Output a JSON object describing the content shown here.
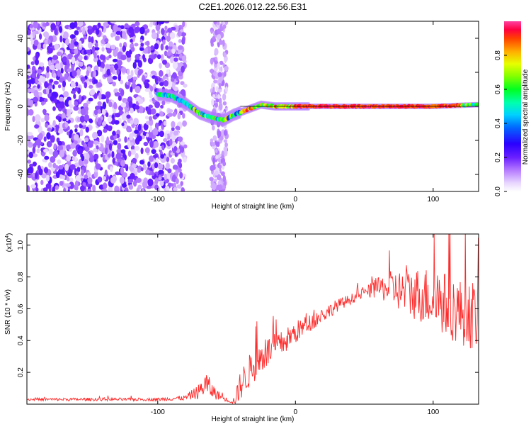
{
  "title": "C2E1.2026.012.22.56.E31",
  "colors": {
    "axis": "#000000",
    "line": "#ff2a2a",
    "spectrum_low": "#cc99ff",
    "spectrum_mid": "#00ff66",
    "spectrum_high": "#ff0000"
  },
  "chart_data": [
    {
      "type": "heatmap",
      "title": "C2E1.2026.012.22.56.E31",
      "xlabel": "Height of straight line (km)",
      "ylabel": "Frequency (Hz)",
      "xlim": [
        -195,
        133
      ],
      "ylim": [
        -50,
        50
      ],
      "xticks": [
        -100,
        0,
        100
      ],
      "yticks": [
        -40,
        -20,
        0,
        20,
        40
      ],
      "colorbar": {
        "label": "Normalized spectral amplitude",
        "range": [
          0,
          1
        ],
        "ticks": [
          "0.0",
          "0.2",
          "0.4",
          "0.6",
          "0.8"
        ]
      },
      "ridge": {
        "x": [
          -98,
          -90,
          -80,
          -70,
          -60,
          -52,
          -45,
          -35,
          -25,
          -15,
          -5,
          0,
          20,
          60,
          100,
          133
        ],
        "y": [
          7,
          6,
          2,
          -4,
          -7,
          -8,
          -5,
          -2,
          1,
          0,
          0,
          0,
          0,
          0,
          0,
          1
        ]
      }
    },
    {
      "type": "line",
      "title": "",
      "xlabel": "Height of straight line (km)",
      "ylabel": "SNR (10 * v/v)",
      "y_multiplier": "(x10^4)",
      "y_multiplier_base": "(x10",
      "y_multiplier_exp": "4",
      "y_multiplier_close": ")",
      "xlim": [
        -195,
        133
      ],
      "ylim": [
        0,
        1.07
      ],
      "xticks": [
        -100,
        0,
        100
      ],
      "yticks": [
        0.2,
        0.4,
        0.6,
        0.8,
        1.0
      ],
      "ytick_labels": [
        "0.2",
        "0.4",
        "0.6",
        "0.8",
        "1.0"
      ],
      "series": [
        {
          "name": "SNR",
          "x": [
            -195,
            -150,
            -100,
            -80,
            -70,
            -65,
            -60,
            -55,
            -48,
            -44,
            -40,
            -30,
            -20,
            -10,
            0,
            10,
            20,
            30,
            40,
            50,
            60,
            70,
            80,
            90,
            100,
            110,
            120,
            133
          ],
          "y": [
            0.03,
            0.03,
            0.03,
            0.04,
            0.08,
            0.13,
            0.08,
            0.05,
            0.02,
            0.02,
            0.12,
            0.25,
            0.33,
            0.38,
            0.45,
            0.51,
            0.56,
            0.62,
            0.66,
            0.7,
            0.73,
            0.73,
            0.7,
            0.69,
            0.67,
            0.62,
            0.58,
            0.55
          ],
          "noise": [
            0.005,
            0.006,
            0.006,
            0.01,
            0.03,
            0.05,
            0.03,
            0.015,
            0.005,
            0.02,
            0.06,
            0.07,
            0.06,
            0.05,
            0.045,
            0.035,
            0.03,
            0.025,
            0.02,
            0.02,
            0.04,
            0.07,
            0.09,
            0.11,
            0.12,
            0.13,
            0.13,
            0.14
          ]
        }
      ]
    }
  ]
}
